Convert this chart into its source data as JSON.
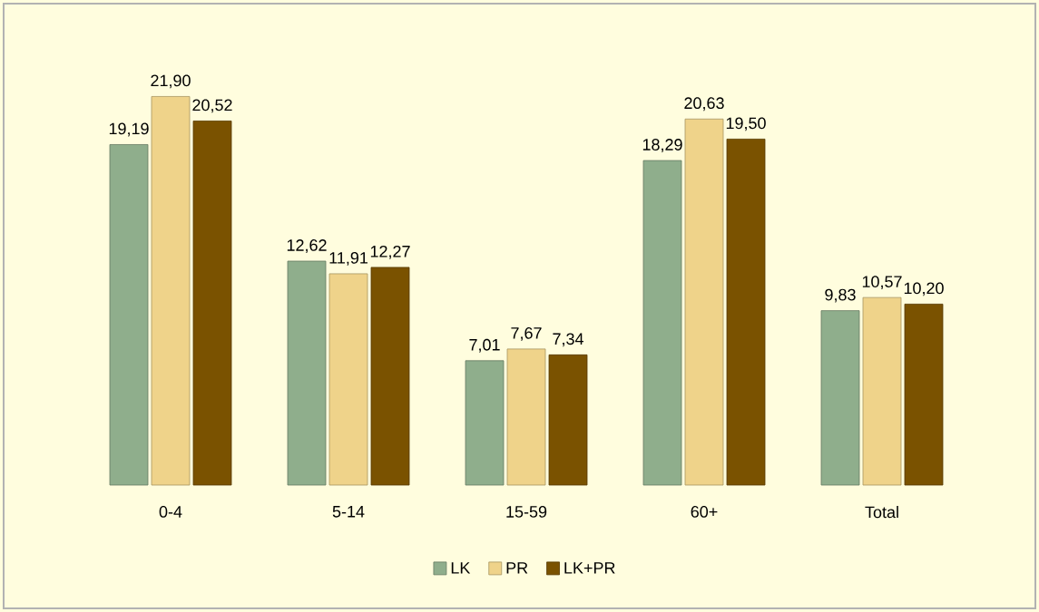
{
  "chart_data": {
    "type": "bar",
    "categories": [
      "0-4",
      "5-14",
      "15-59",
      "60+",
      "Total"
    ],
    "series": [
      {
        "name": "LK",
        "color": "#8fae8c",
        "values": [
          19.19,
          12.62,
          7.01,
          18.29,
          9.83
        ],
        "value_labels": [
          "19,19",
          "12,62",
          "7,01",
          "18,29",
          "9,83"
        ]
      },
      {
        "name": "PR",
        "color": "#efd38a",
        "values": [
          21.9,
          11.91,
          7.67,
          20.63,
          10.57
        ],
        "value_labels": [
          "21,90",
          "11,91",
          "7,67",
          "20,63",
          "10,57"
        ]
      },
      {
        "name": "LK+PR",
        "color": "#7a5200",
        "values": [
          20.52,
          12.27,
          7.34,
          19.5,
          10.2
        ],
        "value_labels": [
          "20,52",
          "12,27",
          "7,34",
          "19,50",
          "10,20"
        ]
      }
    ],
    "legend": "bottom"
  }
}
